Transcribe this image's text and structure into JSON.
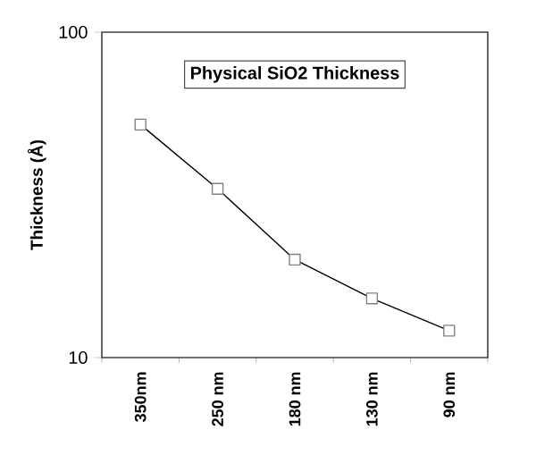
{
  "chart_data": {
    "type": "line",
    "title": "Physical SiO2 Thickness",
    "ylabel": "Thickness (Å)",
    "categories": [
      "350nm",
      "250 nm",
      "180 nm",
      "130 nm",
      "90 nm"
    ],
    "values": [
      52,
      33,
      20,
      15.2,
      12.1
    ],
    "color": "#000000",
    "marker": "square",
    "log": true,
    "ylim": [
      10,
      100
    ],
    "yticks": [
      10,
      100
    ]
  }
}
